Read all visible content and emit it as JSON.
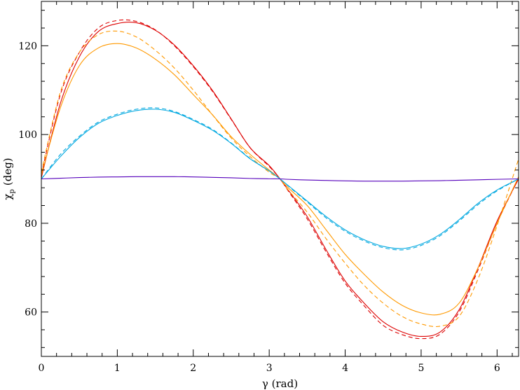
{
  "chart_data": {
    "type": "line",
    "title": "",
    "xlabel": "γ (rad)",
    "ylabel_symbol": "χ",
    "ylabel_subscript": "p",
    "ylabel_unit": "(deg)",
    "xlim": [
      0,
      6.2832
    ],
    "ylim": [
      50,
      130
    ],
    "xticks": [
      0,
      1,
      2,
      3,
      4,
      5,
      6
    ],
    "yticks": [
      60,
      80,
      100,
      120
    ],
    "xtick_labels": [
      "0",
      "1",
      "2",
      "3",
      "4",
      "5",
      "6"
    ],
    "ytick_labels": [
      "60",
      "80",
      "100",
      "120"
    ],
    "x_minor_step": 0.2,
    "y_minor_step": 4,
    "grid": false,
    "x": [
      0.0,
      0.25,
      0.5,
      0.75,
      1.0,
      1.25,
      1.5,
      1.75,
      2.0,
      2.25,
      2.5,
      2.75,
      3.0,
      3.1416,
      3.25,
      3.5,
      3.75,
      4.0,
      4.25,
      4.5,
      4.75,
      5.0,
      5.25,
      5.5,
      5.75,
      6.0,
      6.2832
    ],
    "series": [
      {
        "color": "#dd0000",
        "dash": false,
        "values": [
          90.3,
          107.0,
          117.5,
          123.2,
          125.0,
          125.2,
          123.5,
          120.2,
          115.5,
          110.0,
          103.5,
          97.0,
          93.0,
          90.0,
          87.5,
          81.5,
          74.0,
          67.0,
          62.0,
          57.8,
          55.5,
          54.5,
          55.5,
          60.5,
          70.0,
          80.5,
          90.0
        ]
      },
      {
        "color": "#dd0000",
        "dash": true,
        "values": [
          91.0,
          109.0,
          118.5,
          124.0,
          125.7,
          125.5,
          123.6,
          120.0,
          115.3,
          109.8,
          103.4,
          97.0,
          92.8,
          90.0,
          87.3,
          81.0,
          73.5,
          66.5,
          61.4,
          57.0,
          54.9,
          54.0,
          55.0,
          60.0,
          69.5,
          80.0,
          90.2
        ]
      },
      {
        "color": "#ff9900",
        "dash": false,
        "values": [
          90.8,
          106.0,
          115.5,
          119.5,
          120.5,
          119.5,
          117.0,
          113.5,
          109.0,
          104.5,
          99.5,
          95.5,
          92.0,
          90.0,
          88.0,
          84.0,
          78.5,
          73.0,
          68.5,
          64.5,
          61.5,
          59.8,
          59.5,
          62.0,
          70.0,
          80.0,
          90.5
        ]
      },
      {
        "color": "#ff9900",
        "dash": true,
        "values": [
          91.5,
          109.5,
          118.5,
          122.5,
          123.3,
          122.0,
          119.0,
          115.0,
          110.0,
          104.5,
          99.2,
          95.0,
          91.5,
          90.0,
          87.5,
          82.5,
          76.5,
          71.0,
          66.0,
          62.0,
          59.0,
          57.3,
          56.8,
          59.0,
          67.5,
          79.5,
          94.5
        ]
      },
      {
        "color": "#00a8e0",
        "dash": false,
        "values": [
          90.0,
          95.0,
          99.3,
          102.5,
          104.3,
          105.4,
          105.7,
          105.0,
          103.2,
          101.0,
          98.0,
          94.5,
          91.8,
          90.0,
          88.5,
          85.0,
          81.5,
          78.5,
          76.3,
          74.8,
          74.3,
          75.3,
          77.5,
          80.8,
          84.5,
          87.5,
          90.0
        ]
      },
      {
        "color": "#00a8e0",
        "dash": true,
        "values": [
          90.0,
          95.5,
          99.6,
          102.8,
          104.6,
          105.7,
          106.0,
          105.2,
          103.4,
          101.2,
          98.1,
          94.6,
          91.8,
          90.0,
          88.4,
          84.8,
          81.2,
          78.2,
          76.0,
          74.5,
          74.0,
          75.0,
          77.2,
          80.5,
          84.2,
          87.3,
          90.0
        ]
      },
      {
        "color": "#5500bb",
        "dash": false,
        "values": [
          90.0,
          90.15,
          90.3,
          90.4,
          90.45,
          90.5,
          90.5,
          90.5,
          90.45,
          90.35,
          90.25,
          90.1,
          90.02,
          90.0,
          89.9,
          89.75,
          89.65,
          89.55,
          89.5,
          89.5,
          89.5,
          89.55,
          89.6,
          89.7,
          89.8,
          89.9,
          90.0
        ]
      }
    ]
  }
}
